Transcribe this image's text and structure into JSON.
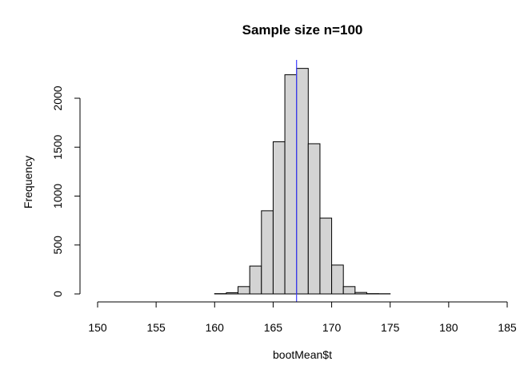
{
  "chart_data": {
    "type": "bar",
    "title": "Sample size n=100",
    "xlabel": "bootMean$t",
    "ylabel": "Frequency",
    "xlim": [
      150,
      185
    ],
    "ylim": [
      0,
      2300
    ],
    "x_ticks": [
      "150",
      "155",
      "160",
      "165",
      "170",
      "175",
      "180",
      "185"
    ],
    "y_ticks": [
      "0",
      "500",
      "1000",
      "1500",
      "2000"
    ],
    "bin_width": 1,
    "bins": [
      {
        "x0": 160,
        "x1": 161,
        "count": 3
      },
      {
        "x0": 161,
        "x1": 162,
        "count": 12
      },
      {
        "x0": 162,
        "x1": 163,
        "count": 75
      },
      {
        "x0": 163,
        "x1": 164,
        "count": 285
      },
      {
        "x0": 164,
        "x1": 165,
        "count": 850
      },
      {
        "x0": 165,
        "x1": 166,
        "count": 1555
      },
      {
        "x0": 166,
        "x1": 167,
        "count": 2240
      },
      {
        "x0": 167,
        "x1": 168,
        "count": 2305
      },
      {
        "x0": 168,
        "x1": 169,
        "count": 1535
      },
      {
        "x0": 169,
        "x1": 170,
        "count": 775
      },
      {
        "x0": 170,
        "x1": 171,
        "count": 295
      },
      {
        "x0": 171,
        "x1": 172,
        "count": 75
      },
      {
        "x0": 172,
        "x1": 173,
        "count": 15
      },
      {
        "x0": 173,
        "x1": 174,
        "count": 3
      },
      {
        "x0": 174,
        "x1": 175,
        "count": 2
      }
    ],
    "vline": {
      "x": 167,
      "color": "#4040ff"
    },
    "bar_fill": "#d3d3d3",
    "bar_stroke": "#000000",
    "grid": false,
    "legend": "none"
  }
}
